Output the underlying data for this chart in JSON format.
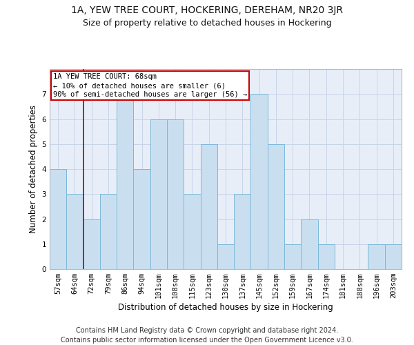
{
  "title1": "1A, YEW TREE COURT, HOCKERING, DEREHAM, NR20 3JR",
  "title2": "Size of property relative to detached houses in Hockering",
  "xlabel": "Distribution of detached houses by size in Hockering",
  "ylabel": "Number of detached properties",
  "categories": [
    "57sqm",
    "64sqm",
    "72sqm",
    "79sqm",
    "86sqm",
    "94sqm",
    "101sqm",
    "108sqm",
    "115sqm",
    "123sqm",
    "130sqm",
    "137sqm",
    "145sqm",
    "152sqm",
    "159sqm",
    "167sqm",
    "174sqm",
    "181sqm",
    "188sqm",
    "196sqm",
    "203sqm"
  ],
  "values": [
    4,
    3,
    2,
    3,
    7,
    4,
    6,
    6,
    3,
    5,
    1,
    3,
    7,
    5,
    1,
    2,
    1,
    0,
    0,
    1,
    1
  ],
  "bar_color": "#c9dff0",
  "bar_edge_color": "#7ab8d9",
  "vline_x_idx": 1.5,
  "annotation_line1": "1A YEW TREE COURT: 68sqm",
  "annotation_line2": "← 10% of detached houses are smaller (6)",
  "annotation_line3": "90% of semi-detached houses are larger (56) →",
  "annotation_box_color": "#ffffff",
  "annotation_box_edge": "#cc0000",
  "vline_color": "#cc0000",
  "footnote": "Contains HM Land Registry data © Crown copyright and database right 2024.\nContains public sector information licensed under the Open Government Licence v3.0.",
  "ylim": [
    0,
    8
  ],
  "yticks": [
    0,
    1,
    2,
    3,
    4,
    5,
    6,
    7
  ],
  "grid_color": "#c8d4e8",
  "bg_color": "#e8eef8",
  "title1_fontsize": 10,
  "title2_fontsize": 9,
  "xlabel_fontsize": 8.5,
  "ylabel_fontsize": 8.5,
  "tick_fontsize": 7.5,
  "footnote_fontsize": 7
}
